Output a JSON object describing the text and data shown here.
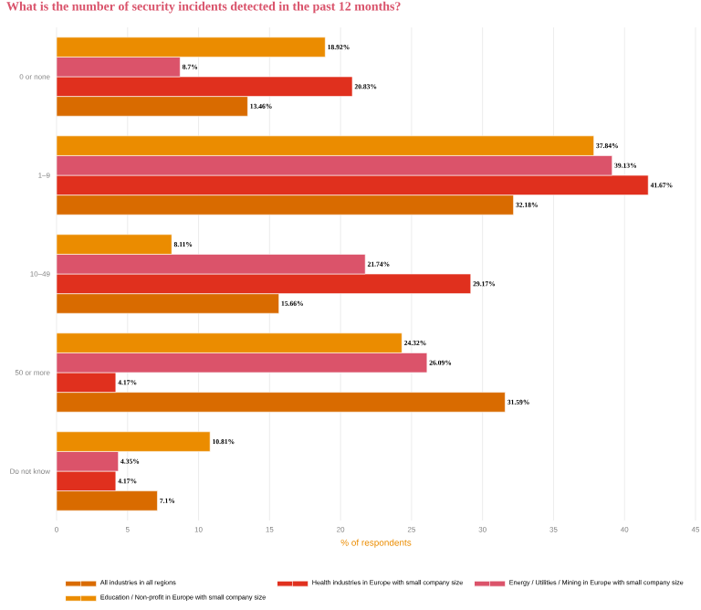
{
  "chart_data": {
    "type": "bar",
    "orientation": "horizontal",
    "title": "What is the number of security incidents detected in the past 12 months?",
    "xlabel": "% of respondents",
    "categories": [
      "0 or none",
      "1–9",
      "10–49",
      "50 or more",
      "Do not know"
    ],
    "xlim": [
      0,
      45
    ],
    "xticks": [
      0,
      5,
      10,
      15,
      20,
      25,
      30,
      35,
      40,
      45
    ],
    "grid": "x",
    "legend": "bottom",
    "series": [
      {
        "name": "All industries in all regions",
        "color": "#d96b00",
        "values": [
          13.46,
          32.18,
          15.66,
          31.59,
          7.1
        ],
        "value_labels": [
          "13.46%",
          "32.18%",
          "15.66%",
          "31.59%",
          "7.1%"
        ]
      },
      {
        "name": "Health industries in Europe with small company size",
        "color": "#e0301e",
        "values": [
          20.83,
          41.67,
          29.17,
          4.17,
          4.17
        ],
        "value_labels": [
          "20.83%",
          "41.67%",
          "29.17%",
          "4.17%",
          "4.17%"
        ]
      },
      {
        "name": "Energy / Utilities / Mining in Europe with small company size",
        "color": "#db536a",
        "values": [
          8.7,
          39.13,
          21.74,
          26.09,
          4.35
        ],
        "value_labels": [
          "8.7%",
          "39.13%",
          "21.74%",
          "26.09%",
          "4.35%"
        ]
      },
      {
        "name": "Education / Non-profit in Europe with small company size",
        "color": "#eb8c00",
        "values": [
          18.92,
          37.84,
          8.11,
          24.32,
          10.81
        ],
        "value_labels": [
          "18.92%",
          "37.84%",
          "8.11%",
          "24.32%",
          "10.81%"
        ]
      }
    ]
  }
}
